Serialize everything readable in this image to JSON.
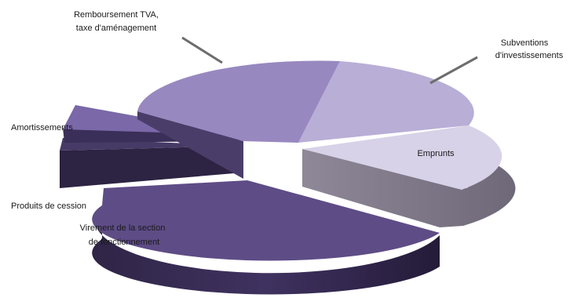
{
  "chart_data": {
    "type": "pie",
    "style": "3d-exploded",
    "title": "",
    "slices": [
      {
        "name": "Virement de la section de fonctionnement",
        "value": 41,
        "color": "#5e4c86"
      },
      {
        "name": "Produits de cession",
        "value": 4,
        "color": "#463a66"
      },
      {
        "name": "Amortissements",
        "value": 4,
        "color": "#7a68a8"
      },
      {
        "name": "Remboursement TVA, taxe d'aménagement",
        "value": 22,
        "color": "#9888c0"
      },
      {
        "name": "Subventions d'investissements",
        "value": 16,
        "color": "#b9aed6"
      },
      {
        "name": "Emprunts",
        "value": 13,
        "color": "#d8d2e8"
      }
    ],
    "labels": {
      "virement": "Virement de la section",
      "virement2": "de fonctionnement",
      "produits": "Produits de cession",
      "amortissements": "Amortissements",
      "remb1": "Remboursement TVA,",
      "remb2": "taxe d'aménagement",
      "subv1": "Subventions",
      "subv2": "d'investissements",
      "emprunts": "Emprunts"
    }
  }
}
